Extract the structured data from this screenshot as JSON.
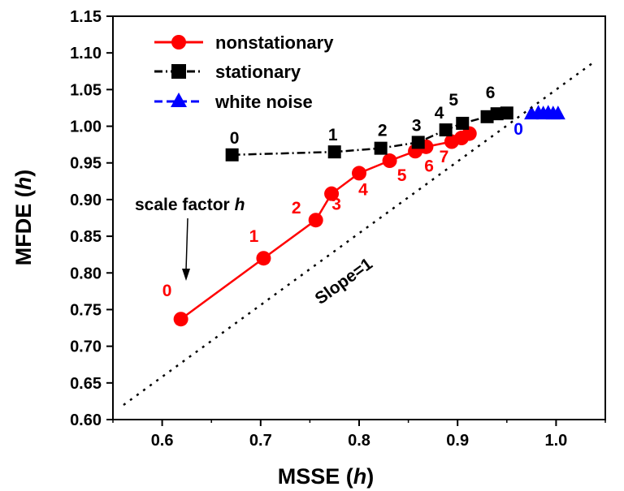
{
  "chart_data": {
    "type": "line",
    "xlabel": {
      "main": "MSSE",
      "arg": "h"
    },
    "ylabel": {
      "main": "MFDE",
      "arg": "h"
    },
    "xlim": [
      0.55,
      1.05
    ],
    "ylim": [
      0.6,
      1.15
    ],
    "xticks": [
      "0.6",
      "0.7",
      "0.8",
      "0.9",
      "1.0"
    ],
    "yticks": [
      "0.60",
      "0.65",
      "0.70",
      "0.75",
      "0.80",
      "0.85",
      "0.90",
      "0.95",
      "1.00",
      "1.05",
      "1.10",
      "1.15"
    ],
    "legend_position": "top-left",
    "series": [
      {
        "name": "nonstationary",
        "color": "#ff0000",
        "marker": "circle",
        "line": "solid",
        "points": [
          [
            0.619,
            0.737
          ],
          [
            0.703,
            0.82
          ],
          [
            0.756,
            0.872
          ],
          [
            0.772,
            0.908
          ],
          [
            0.8,
            0.936
          ],
          [
            0.831,
            0.953
          ],
          [
            0.857,
            0.966
          ],
          [
            0.868,
            0.972
          ],
          [
            0.894,
            0.979
          ],
          [
            0.904,
            0.984
          ],
          [
            0.912,
            0.99
          ]
        ],
        "point_labels": [
          "0",
          "1",
          "2",
          "3",
          "4",
          "5",
          "6",
          "7"
        ]
      },
      {
        "name": "stationary",
        "color": "#000000",
        "marker": "square",
        "line": "dashdot",
        "points": [
          [
            0.671,
            0.961
          ],
          [
            0.775,
            0.965
          ],
          [
            0.822,
            0.97
          ],
          [
            0.86,
            0.978
          ],
          [
            0.888,
            0.995
          ],
          [
            0.905,
            1.004
          ],
          [
            0.93,
            1.013
          ],
          [
            0.94,
            1.017
          ],
          [
            0.95,
            1.018
          ]
        ],
        "point_labels": [
          "0",
          "1",
          "2",
          "3",
          "4",
          "5",
          "6"
        ]
      },
      {
        "name": "white noise",
        "color": "#0000ff",
        "marker": "triangle",
        "line": "dashed",
        "points": [
          [
            0.975,
            1.017
          ],
          [
            0.982,
            1.018
          ],
          [
            0.987,
            1.017
          ],
          [
            0.992,
            1.018
          ],
          [
            0.997,
            1.017
          ],
          [
            1.002,
            1.017
          ]
        ],
        "point_labels": [
          "0"
        ]
      }
    ],
    "annotations": {
      "scale_factor": {
        "main": "scale factor",
        "arg": "h"
      },
      "slope": "Slope=1"
    }
  }
}
